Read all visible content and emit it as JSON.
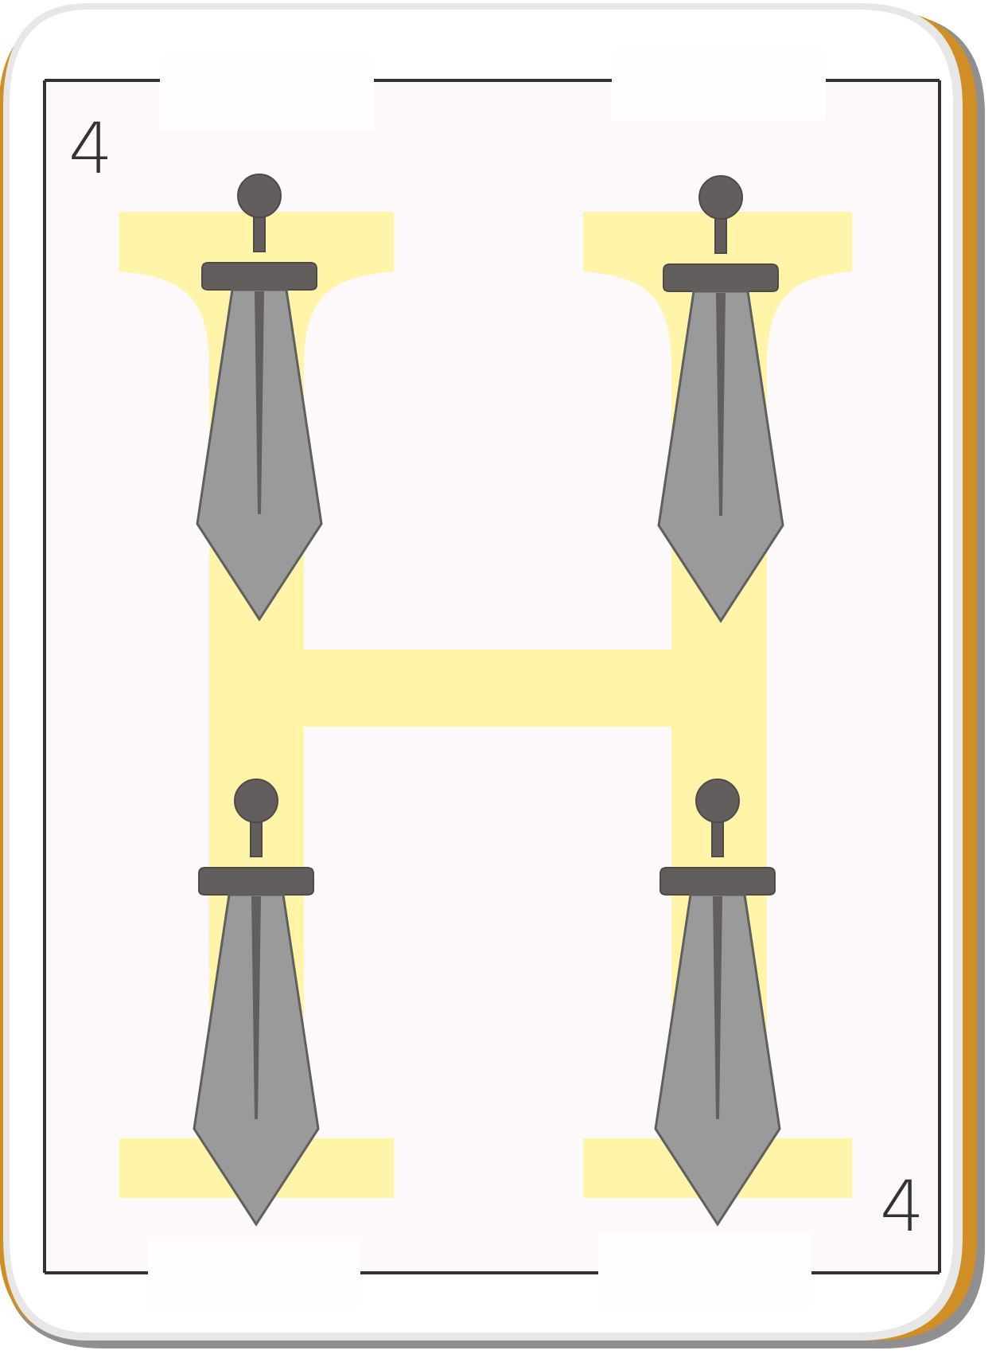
{
  "card": {
    "rank": "4",
    "suit": "swords",
    "pip_count": 4,
    "pip_icon": "sword-icon",
    "colors": {
      "card_face": "#fdf9fb",
      "card_edge": "#ffffff",
      "card_outline": "#e7e7e7",
      "shadow_gold": "#d08f24",
      "shadow_gray": "#8f8f8f",
      "frame": "#333333",
      "letter_band": "#fff4a8",
      "blade": "#9a9a9a",
      "hilt": "#625e5e"
    }
  }
}
